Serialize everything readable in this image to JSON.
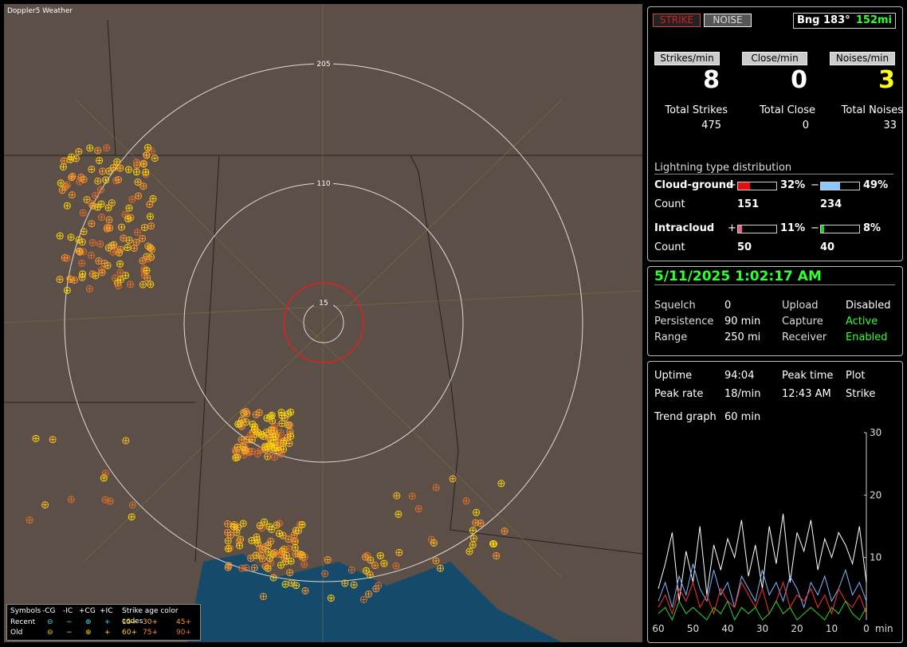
{
  "header": {
    "title": "Doppler5 Weather"
  },
  "map": {
    "ring_labels": [
      205,
      110,
      15
    ]
  },
  "legend": {
    "title": "Symbols",
    "columns": [
      "-CG",
      "-IC",
      "+CG",
      "+IC"
    ],
    "age_title": "Strike age color codes",
    "rows": [
      {
        "label": "Recent",
        "symbols": [
          "⊖",
          "−",
          "⊕",
          "+"
        ],
        "ages": [
          "15+",
          "30+",
          "45+"
        ]
      },
      {
        "label": "Old",
        "symbols": [
          "⊖",
          "−",
          "⊕",
          "+"
        ],
        "ages": [
          "60+",
          "75+",
          "90+"
        ]
      }
    ]
  },
  "stats": {
    "buttons": [
      "STRIKE",
      "NOISE"
    ],
    "bearing": "Bng 183°",
    "distance": "152mi",
    "rates": [
      {
        "label": "Strikes/min",
        "value": 8
      },
      {
        "label": "Close/min",
        "value": 0
      },
      {
        "label": "Noises/min",
        "value": 3
      }
    ],
    "totals": [
      {
        "label": "Total Strikes",
        "value": 475
      },
      {
        "label": "Total Close",
        "value": 0
      },
      {
        "label": "Total Noises",
        "value": 33
      }
    ],
    "distribution": {
      "title": "Lightning type distribution",
      "count_label": "Count",
      "rows": [
        {
          "label": "Cloud-ground",
          "pos_sign": "+",
          "neg_sign": "−",
          "pos": {
            "value": 32,
            "label": "32%"
          },
          "neg": {
            "value": 49,
            "label": "49%"
          },
          "pos_count": 151,
          "neg_count": 234
        },
        {
          "label": "Intracloud",
          "pos_sign": "+",
          "neg_sign": "−",
          "pos": {
            "value": 11,
            "label": "11%"
          },
          "neg": {
            "value": 8,
            "label": "8%"
          },
          "pos_count": 50,
          "neg_count": 40
        }
      ]
    }
  },
  "status": {
    "datetime": "5/11/2025 1:02:17 AM",
    "rows": [
      [
        "Squelch",
        "0",
        "Upload",
        "Disabled"
      ],
      [
        "Persistence",
        "90 min",
        "Capture",
        "Active"
      ],
      [
        "Range",
        "250 mi",
        "Receiver",
        "Enabled"
      ]
    ]
  },
  "summary": {
    "rows": [
      [
        "Uptime",
        "94:04",
        "Peak time",
        "Plot"
      ],
      [
        "Peak rate",
        "18/min",
        "12:43 AM",
        "Strike"
      ]
    ],
    "trend_label": "Trend graph",
    "trend_value": "60 min"
  },
  "trend_graph": {
    "type": "line",
    "x_unit": "min",
    "x": [
      60,
      58,
      56,
      54,
      52,
      50,
      48,
      46,
      44,
      42,
      40,
      38,
      36,
      34,
      32,
      30,
      28,
      26,
      24,
      22,
      20,
      18,
      16,
      14,
      12,
      10,
      8,
      6,
      4,
      2,
      0
    ],
    "xlim": [
      60,
      0
    ],
    "xticks": [
      60,
      50,
      40,
      30,
      20,
      10,
      0
    ],
    "ylim": [
      0,
      30
    ],
    "yticks": [
      10,
      20,
      30
    ],
    "series": [
      {
        "color": "#ffffff",
        "values": [
          5,
          9,
          14,
          3,
          11,
          6,
          15,
          4,
          12,
          8,
          13,
          10,
          16,
          7,
          12,
          5,
          15,
          9,
          17,
          6,
          14,
          11,
          16,
          8,
          13,
          10,
          14,
          12,
          9,
          15,
          6
        ]
      },
      {
        "color": "#7fb6ff",
        "values": [
          3,
          6,
          2,
          7,
          4,
          9,
          5,
          3,
          8,
          4,
          6,
          2,
          7,
          5,
          3,
          8,
          4,
          6,
          3,
          7,
          5,
          2,
          6,
          4,
          7,
          3,
          5,
          8,
          4,
          6,
          3
        ]
      },
      {
        "color": "#ff3030",
        "values": [
          2,
          4,
          1,
          5,
          3,
          6,
          2,
          4,
          1,
          5,
          3,
          2,
          6,
          4,
          2,
          5,
          1,
          3,
          6,
          2,
          4,
          3,
          5,
          2,
          4,
          1,
          5,
          3,
          2,
          4,
          1
        ]
      },
      {
        "color": "#30d030",
        "values": [
          1,
          2,
          0,
          3,
          1,
          2,
          1,
          0,
          2,
          1,
          3,
          0,
          2,
          1,
          2,
          0,
          1,
          3,
          1,
          2,
          0,
          1,
          2,
          1,
          0,
          2,
          1,
          3,
          1,
          0,
          2
        ]
      }
    ]
  }
}
